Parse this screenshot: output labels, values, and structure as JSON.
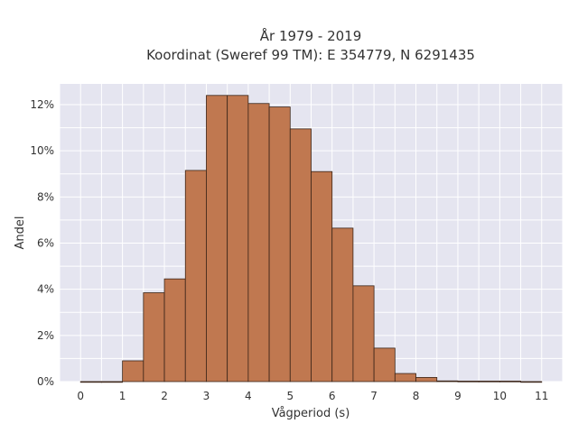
{
  "chart_data": {
    "type": "bar",
    "title_line1": "År 1979 - 2019",
    "title_line2": "Koordinat (Sweref 99 TM): E 354779, N 6291435",
    "xlabel": "Vågperiod (s)",
    "ylabel": "Andel",
    "bin_width": 0.5,
    "bin_starts": [
      0,
      0.5,
      1,
      1.5,
      2,
      2.5,
      3,
      3.5,
      4,
      4.5,
      5,
      5.5,
      6,
      6.5,
      7,
      7.5,
      8,
      8.5,
      9,
      9.5,
      10,
      10.5
    ],
    "values": [
      0.0,
      0.0,
      0.9,
      3.85,
      4.45,
      9.15,
      12.4,
      12.4,
      12.05,
      11.9,
      10.95,
      9.1,
      6.65,
      4.15,
      1.45,
      0.35,
      0.18,
      0.03,
      0.02,
      0.02,
      0.02,
      0.0
    ],
    "xlim": [
      -0.5,
      11.5
    ],
    "ylim": [
      0,
      12.9
    ],
    "x_ticks": [
      0,
      1,
      2,
      3,
      4,
      5,
      6,
      7,
      8,
      9,
      10,
      11
    ],
    "x_tick_labels": [
      "0",
      "1",
      "2",
      "3",
      "4",
      "5",
      "6",
      "7",
      "8",
      "9",
      "10",
      "11"
    ],
    "y_ticks": [
      0,
      2,
      4,
      6,
      8,
      10,
      12
    ],
    "y_tick_labels": [
      "0%",
      "2%",
      "4%",
      "6%",
      "8%",
      "10%",
      "12%"
    ],
    "grid": true,
    "colors": {
      "bar": "#c07850",
      "bar_edge": "#3a2418",
      "plot_bg": "#e5e5f0",
      "grid": "#ffffff"
    }
  }
}
